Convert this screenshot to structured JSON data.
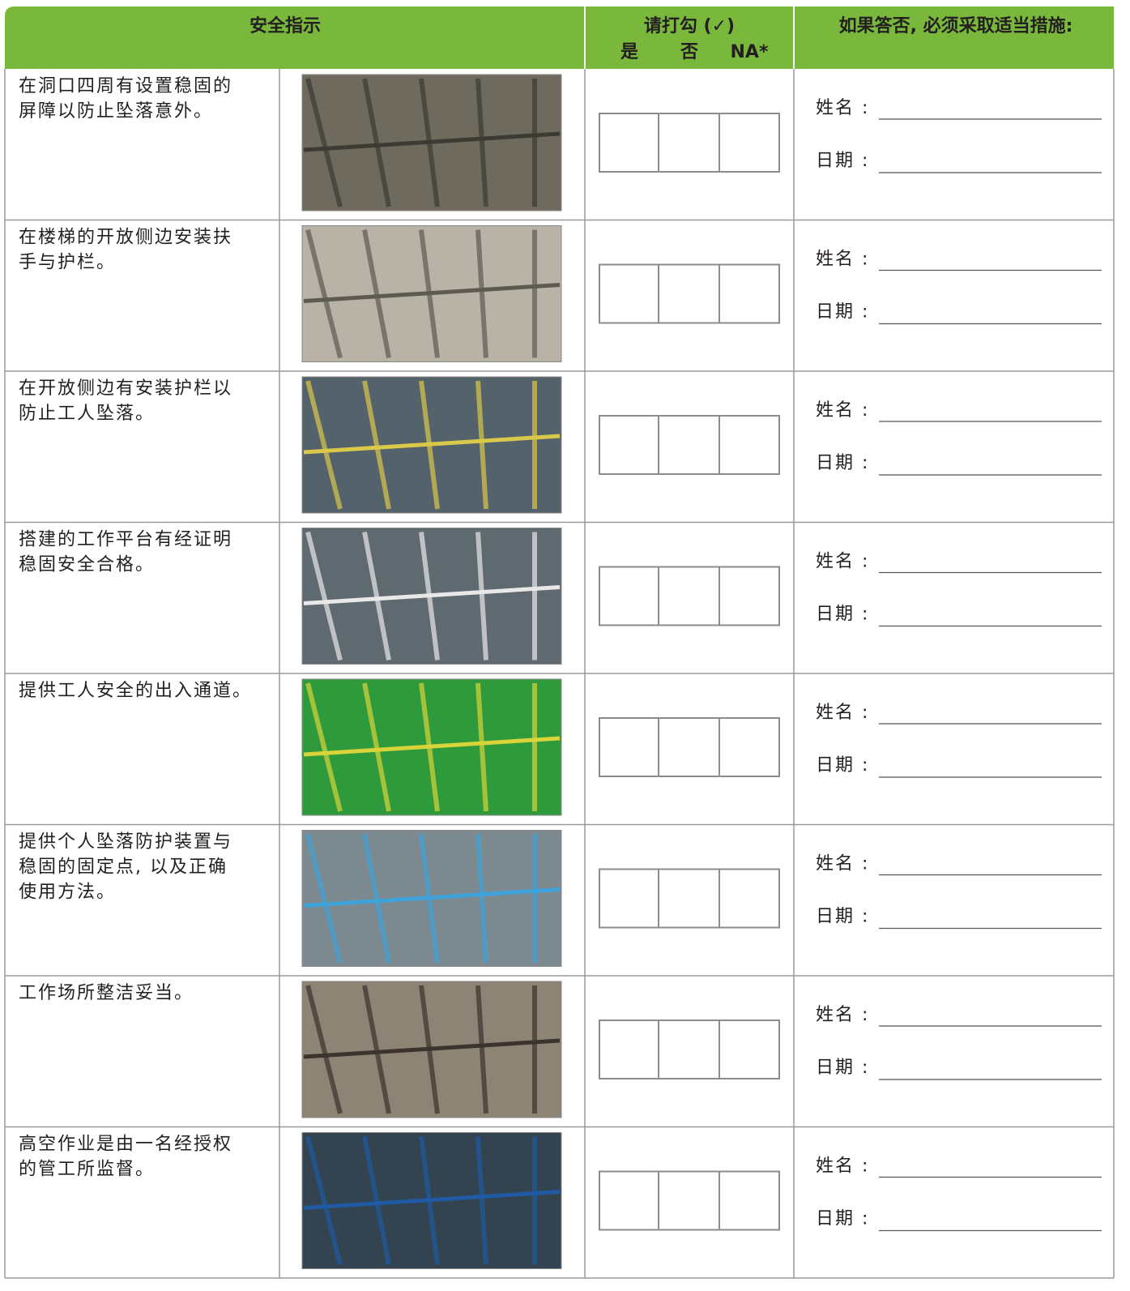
{
  "header": {
    "instruction": "安全指示",
    "check": "请打勾 (✓)",
    "check_options": [
      "是",
      "否",
      "NA*"
    ],
    "action": "如果答否, 必须采取适当措施:"
  },
  "field_labels": {
    "name": "姓名 :",
    "date": "日期 :"
  },
  "rows": [
    {
      "lines": [
        "在洞口四周有设置稳固的",
        "屏障以防止坠落意外。"
      ]
    },
    {
      "lines": [
        "在楼梯的开放侧边安装扶",
        "手与护栏。"
      ]
    },
    {
      "lines": [
        "在开放侧边有安装护栏以",
        "防止工人坠落。"
      ]
    },
    {
      "lines": [
        "搭建的工作平台有经证明",
        "稳固安全合格。"
      ]
    },
    {
      "lines": [
        "提供工人安全的出入通道。"
      ]
    },
    {
      "lines": [
        "提供个人坠落防护装置与",
        "稳固的固定点, 以及正确",
        "使用方法。"
      ]
    },
    {
      "lines": [
        "工作场所整洁妥当。"
      ]
    },
    {
      "lines": [
        "高空作业是由一名经授权",
        "的管工所监督。"
      ]
    }
  ]
}
